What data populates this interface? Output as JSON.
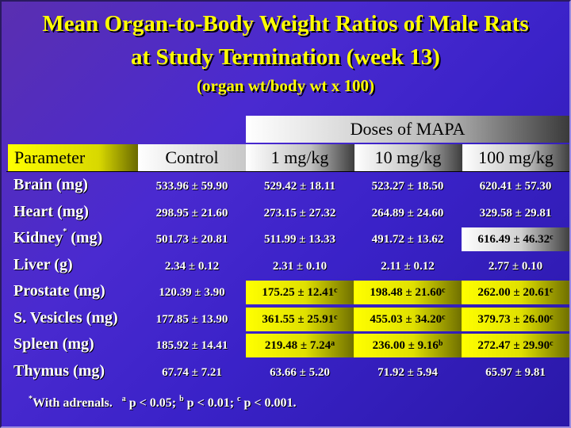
{
  "title": {
    "line1": "Mean Organ-to-Body Weight Ratios of Male Rats",
    "line2": "at Study Termination (week 13)",
    "line3": "(organ wt/body wt x 100)"
  },
  "table": {
    "group_header": "Doses of MAPA",
    "columns": [
      "Parameter",
      "Control",
      "1 mg/kg",
      "10 mg/kg",
      "100 mg/kg"
    ],
    "rows": [
      {
        "param": "Brain (mg)",
        "values": [
          {
            "v": "533.96 ± 59.90",
            "sup": ""
          },
          {
            "v": "529.42 ± 18.11",
            "sup": ""
          },
          {
            "v": "523.27 ± 18.50",
            "sup": ""
          },
          {
            "v": "620.41 ± 57.30",
            "sup": ""
          }
        ]
      },
      {
        "param": "Heart (mg)",
        "values": [
          {
            "v": "298.95 ± 21.60",
            "sup": ""
          },
          {
            "v": "273.15 ± 27.32",
            "sup": ""
          },
          {
            "v": "264.89 ± 24.60",
            "sup": ""
          },
          {
            "v": "329.58 ± 29.81",
            "sup": ""
          }
        ]
      },
      {
        "param": "Kidney",
        "param_sup": "*",
        "param_suffix": " (mg)",
        "values": [
          {
            "v": "501.73 ± 20.81",
            "sup": ""
          },
          {
            "v": "511.99 ± 13.33",
            "sup": ""
          },
          {
            "v": "491.72 ± 13.62",
            "sup": ""
          },
          {
            "v": "616.49 ± 46.32",
            "sup": "c"
          }
        ]
      },
      {
        "param": "Liver (g)",
        "values": [
          {
            "v": "2.34 ± 0.12",
            "sup": ""
          },
          {
            "v": "2.31 ± 0.10",
            "sup": ""
          },
          {
            "v": "2.11 ± 0.12",
            "sup": ""
          },
          {
            "v": "2.77 ± 0.10",
            "sup": ""
          }
        ]
      },
      {
        "param": "Prostate (mg)",
        "values": [
          {
            "v": "120.39 ± 3.90",
            "sup": ""
          },
          {
            "v": "175.25 ± 12.41",
            "sup": "c"
          },
          {
            "v": "198.48 ± 21.60",
            "sup": "c"
          },
          {
            "v": "262.00 ± 20.61",
            "sup": "c"
          }
        ]
      },
      {
        "param": "S. Vesicles (mg)",
        "values": [
          {
            "v": "177.85 ± 13.90",
            "sup": ""
          },
          {
            "v": "361.55 ± 25.91",
            "sup": "c"
          },
          {
            "v": "455.03 ± 34.20",
            "sup": "c"
          },
          {
            "v": "379.73 ± 26.00",
            "sup": "c"
          }
        ]
      },
      {
        "param": "Spleen (mg)",
        "values": [
          {
            "v": "185.92 ± 14.41",
            "sup": ""
          },
          {
            "v": "219.48 ± 7.24",
            "sup": "a"
          },
          {
            "v": "236.00 ± 9.16",
            "sup": "b"
          },
          {
            "v": "272.47 ± 29.90",
            "sup": "c"
          }
        ]
      },
      {
        "param": "Thymus (mg)",
        "values": [
          {
            "v": "67.74 ± 7.21",
            "sup": ""
          },
          {
            "v": "63.66 ± 5.20",
            "sup": ""
          },
          {
            "v": "71.92 ± 5.94",
            "sup": ""
          },
          {
            "v": "65.97 ± 9.81",
            "sup": ""
          }
        ]
      }
    ]
  },
  "footnote": {
    "star": "*",
    "adrenals": "With adrenals.",
    "a_sup": "a",
    "a_text": " p < 0.05;",
    "b_sup": "b",
    "b_text": " p < 0.01;",
    "c_sup": "c",
    "c_text": " p < 0.001."
  },
  "colors": {
    "background": "#3a22c8",
    "title": "#ffff00",
    "highlight_yellow": "#ffff00",
    "highlight_white": "#ffffff"
  }
}
